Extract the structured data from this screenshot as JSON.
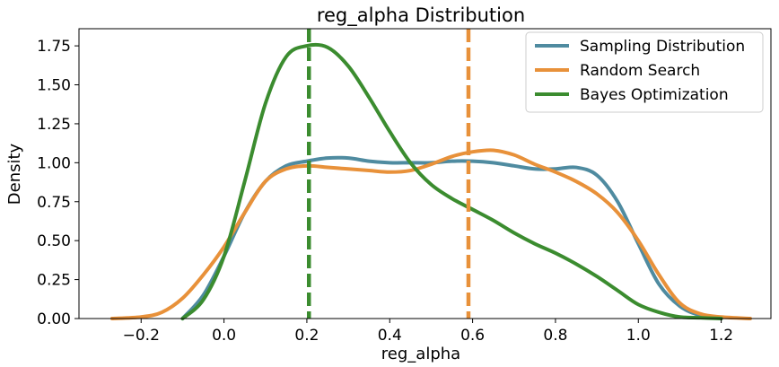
{
  "chart_data": {
    "type": "line",
    "title": "reg_alpha Distribution",
    "xlabel": "reg_alpha",
    "ylabel": "Density",
    "xlim": [
      -0.35,
      1.32
    ],
    "ylim": [
      0,
      1.86
    ],
    "xticks": [
      -0.2,
      0.0,
      0.2,
      0.4,
      0.6,
      0.8,
      1.0,
      1.2
    ],
    "xtick_labels": [
      "−0.2",
      "0.0",
      "0.2",
      "0.4",
      "0.6",
      "0.8",
      "1.0",
      "1.2"
    ],
    "yticks": [
      0.0,
      0.25,
      0.5,
      0.75,
      1.0,
      1.25,
      1.5,
      1.75
    ],
    "ytick_labels": [
      "0.00",
      "0.25",
      "0.50",
      "0.75",
      "1.00",
      "1.25",
      "1.50",
      "1.75"
    ],
    "grid": false,
    "legend_position": "top-right",
    "series": [
      {
        "name": "Sampling Distribution",
        "color": "#4f8ba0",
        "x": [
          -0.1,
          -0.05,
          0.0,
          0.05,
          0.1,
          0.15,
          0.2,
          0.25,
          0.3,
          0.35,
          0.4,
          0.45,
          0.5,
          0.55,
          0.6,
          0.65,
          0.7,
          0.75,
          0.8,
          0.85,
          0.9,
          0.95,
          1.0,
          1.05,
          1.1,
          1.15,
          1.2
        ],
        "y": [
          0.0,
          0.15,
          0.4,
          0.68,
          0.88,
          0.98,
          1.01,
          1.03,
          1.03,
          1.01,
          1.0,
          1.0,
          1.0,
          1.01,
          1.01,
          1.0,
          0.98,
          0.96,
          0.96,
          0.97,
          0.92,
          0.75,
          0.48,
          0.22,
          0.08,
          0.02,
          0.0
        ]
      },
      {
        "name": "Random Search",
        "color": "#e8913a",
        "x": [
          -0.27,
          -0.2,
          -0.15,
          -0.1,
          -0.05,
          0.0,
          0.05,
          0.1,
          0.15,
          0.2,
          0.25,
          0.3,
          0.35,
          0.4,
          0.45,
          0.5,
          0.55,
          0.6,
          0.65,
          0.7,
          0.75,
          0.8,
          0.85,
          0.9,
          0.95,
          1.0,
          1.05,
          1.1,
          1.15,
          1.2,
          1.27
        ],
        "y": [
          0.0,
          0.01,
          0.04,
          0.13,
          0.28,
          0.46,
          0.68,
          0.88,
          0.96,
          0.98,
          0.97,
          0.96,
          0.95,
          0.94,
          0.95,
          0.99,
          1.04,
          1.07,
          1.08,
          1.05,
          0.99,
          0.94,
          0.88,
          0.8,
          0.68,
          0.5,
          0.28,
          0.1,
          0.03,
          0.01,
          0.0
        ]
      },
      {
        "name": "Bayes Optimization",
        "color": "#3b8c2f",
        "x": [
          -0.1,
          -0.05,
          0.0,
          0.05,
          0.1,
          0.15,
          0.2,
          0.25,
          0.3,
          0.35,
          0.4,
          0.45,
          0.5,
          0.55,
          0.6,
          0.65,
          0.7,
          0.75,
          0.8,
          0.85,
          0.9,
          0.95,
          1.0,
          1.05,
          1.1,
          1.15,
          1.2
        ],
        "y": [
          0.0,
          0.12,
          0.4,
          0.88,
          1.38,
          1.68,
          1.75,
          1.74,
          1.62,
          1.42,
          1.2,
          1.0,
          0.86,
          0.77,
          0.7,
          0.63,
          0.55,
          0.48,
          0.42,
          0.35,
          0.27,
          0.18,
          0.09,
          0.04,
          0.01,
          0.005,
          0.0
        ]
      }
    ],
    "vlines": [
      {
        "x": 0.205,
        "color": "#3b8c2f",
        "style": "dashed"
      },
      {
        "x": 0.59,
        "color": "#e8913a",
        "style": "dashed"
      }
    ]
  }
}
